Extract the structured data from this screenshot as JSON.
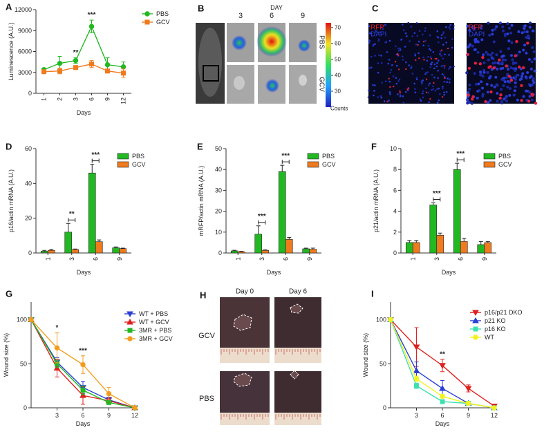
{
  "chart_data": [
    {
      "type": "line",
      "panel": "A",
      "x_label": "Days",
      "y_label": "Luminescence (A.U.)",
      "categories": [
        "1",
        "2",
        "3",
        "6",
        "9",
        "12"
      ],
      "ylim": [
        0,
        12000
      ],
      "yticks": [
        0,
        3000,
        6000,
        9000,
        12000
      ],
      "legend": "upper right",
      "series": [
        {
          "name": "PBS",
          "color": "#22b822",
          "marker": "circle",
          "values": [
            3400,
            4300,
            4700,
            9600,
            4100,
            3800
          ],
          "errors": [
            200,
            1000,
            400,
            900,
            1000,
            700
          ]
        },
        {
          "name": "GCV",
          "color": "#f07a1e",
          "marker": "square",
          "values": [
            3100,
            3200,
            3700,
            4200,
            3200,
            2900
          ],
          "errors": [
            200,
            400,
            200,
            500,
            200,
            600
          ]
        }
      ],
      "annotations": [
        {
          "category": "3",
          "label": "**"
        },
        {
          "category": "6",
          "label": "***"
        }
      ]
    },
    {
      "type": "bar",
      "panel": "D",
      "x_label": "Days",
      "y_label": "p16/actin mRNA (A.U.)",
      "categories": [
        "1",
        "3",
        "6",
        "9"
      ],
      "ylim": [
        0,
        60
      ],
      "yticks": [
        0,
        20,
        40,
        60
      ],
      "legend": "upper right",
      "series": [
        {
          "name": "PBS",
          "color": "#22b822",
          "values": [
            1,
            12,
            46,
            3
          ],
          "errors": [
            0.5,
            5,
            5,
            0.5
          ]
        },
        {
          "name": "GCV",
          "color": "#f07a1e",
          "values": [
            1.5,
            2,
            6.5,
            2.5
          ],
          "errors": [
            0.5,
            0.3,
            1,
            0.3
          ]
        }
      ],
      "annotations": [
        {
          "category": "3",
          "label": "**"
        },
        {
          "category": "6",
          "label": "***"
        }
      ]
    },
    {
      "type": "bar",
      "panel": "E",
      "x_label": "Days",
      "y_label": "mRFP/actin mRNA (A.U.)",
      "categories": [
        "1",
        "3",
        "6",
        "9"
      ],
      "ylim": [
        0,
        50
      ],
      "yticks": [
        0,
        10,
        20,
        30,
        40,
        50
      ],
      "legend": "upper right",
      "series": [
        {
          "name": "PBS",
          "color": "#22b822",
          "values": [
            1,
            9,
            39,
            2
          ],
          "errors": [
            0.3,
            4,
            3,
            0.3
          ]
        },
        {
          "name": "GCV",
          "color": "#f07a1e",
          "values": [
            0.6,
            1.2,
            6.5,
            1.8
          ],
          "errors": [
            0.2,
            0.3,
            1,
            0.5
          ]
        }
      ],
      "annotations": [
        {
          "category": "3",
          "label": "***"
        },
        {
          "category": "6",
          "label": "***"
        }
      ]
    },
    {
      "type": "bar",
      "panel": "F",
      "x_label": "Days",
      "y_label": "p21/actin mRNA (A.U.)",
      "categories": [
        "1",
        "3",
        "6",
        "9"
      ],
      "ylim": [
        0,
        10
      ],
      "yticks": [
        0,
        2,
        4,
        6,
        8,
        10
      ],
      "legend": "upper right",
      "series": [
        {
          "name": "PBS",
          "color": "#22b822",
          "values": [
            1,
            4.6,
            8,
            0.8
          ],
          "errors": [
            0.2,
            0.2,
            0.6,
            0.3
          ]
        },
        {
          "name": "GCV",
          "color": "#f07a1e",
          "values": [
            1,
            1.7,
            1.1,
            1
          ],
          "errors": [
            0.2,
            0.2,
            0.3,
            0.1
          ]
        }
      ],
      "annotations": [
        {
          "category": "3",
          "label": "***"
        },
        {
          "category": "6",
          "label": "***"
        }
      ]
    },
    {
      "type": "line",
      "panel": "G",
      "x_label": "Days",
      "y_label": "Wound size (%)",
      "x": [
        0,
        3,
        6,
        9,
        12
      ],
      "xlim": [
        0,
        12
      ],
      "xticks": [
        3,
        6,
        9,
        12
      ],
      "ylim": [
        0,
        120
      ],
      "yticks": [
        0,
        50,
        100
      ],
      "legend": "upper right",
      "series": [
        {
          "name": "WT + PBS",
          "color": "#2a3fd6",
          "marker": "triangle-down",
          "values": [
            100,
            52,
            23,
            9,
            0
          ],
          "errors": [
            null,
            5,
            7,
            3,
            null
          ]
        },
        {
          "name": "WT + GCV",
          "color": "#e0201e",
          "marker": "triangle-up",
          "values": [
            100,
            45,
            14,
            8,
            0
          ],
          "errors": [
            null,
            10,
            10,
            3,
            null
          ]
        },
        {
          "name": "3MR + PBS",
          "color": "#22b822",
          "marker": "square",
          "values": [
            100,
            50,
            20,
            6,
            0
          ],
          "errors": [
            null,
            4,
            5,
            2,
            null
          ]
        },
        {
          "name": "3MR + GCV",
          "color": "#f39c1e",
          "marker": "circle",
          "values": [
            100,
            68,
            49,
            16,
            0
          ],
          "errors": [
            null,
            17,
            10,
            7,
            null
          ]
        }
      ],
      "annotations": [
        {
          "x": 3,
          "label": "*"
        },
        {
          "x": 6,
          "label": "***"
        }
      ]
    },
    {
      "type": "line",
      "panel": "I",
      "x_label": "Days",
      "y_label": "Wound size (%)",
      "x": [
        0,
        3,
        6,
        9,
        12
      ],
      "xlim": [
        0,
        12
      ],
      "xticks": [
        3,
        6,
        9,
        12
      ],
      "ylim": [
        0,
        120
      ],
      "yticks": [
        0,
        50,
        100
      ],
      "legend": "upper right",
      "series": [
        {
          "name": "p16/p21 DKO",
          "color": "#e0201e",
          "marker": "triangle-down",
          "values": [
            100,
            69,
            48,
            22,
            2
          ],
          "errors": [
            null,
            22,
            7,
            4,
            1
          ]
        },
        {
          "name": "p21 KO",
          "color": "#2a3fd6",
          "marker": "triangle-up",
          "values": [
            100,
            42,
            22,
            5,
            0
          ],
          "errors": [
            null,
            10,
            9,
            2,
            null
          ]
        },
        {
          "name": "p16 KO",
          "color": "#3fe0b0",
          "marker": "square",
          "values": [
            100,
            25,
            7,
            5,
            0
          ],
          "errors": [
            null,
            3,
            2,
            1,
            null
          ]
        },
        {
          "name": "WT",
          "color": "#f2f21e",
          "marker": "circle",
          "values": [
            100,
            33,
            13,
            5,
            0
          ],
          "errors": [
            null,
            3,
            2,
            1,
            null
          ]
        }
      ],
      "annotations": [
        {
          "x": 6,
          "label": "**"
        }
      ]
    }
  ],
  "figure_panels": {
    "B": {
      "panel": "B",
      "heading": "DAY",
      "days": [
        "3",
        "6",
        "9"
      ],
      "rows": [
        "PBS",
        "GCV"
      ],
      "colorbar": {
        "lim": [
          20,
          73
        ],
        "ticks": [
          30,
          40,
          50,
          60,
          70
        ],
        "label": "Counts"
      }
    },
    "C": {
      "panel": "C",
      "images": [
        {
          "channels": [
            "RFP",
            "DAPI"
          ]
        },
        {
          "channels": [
            "RFP",
            "DAPI"
          ]
        }
      ]
    },
    "H": {
      "panel": "H",
      "columns": [
        "Day 0",
        "Day 6"
      ],
      "rows": [
        "GCV",
        "PBS"
      ]
    }
  }
}
